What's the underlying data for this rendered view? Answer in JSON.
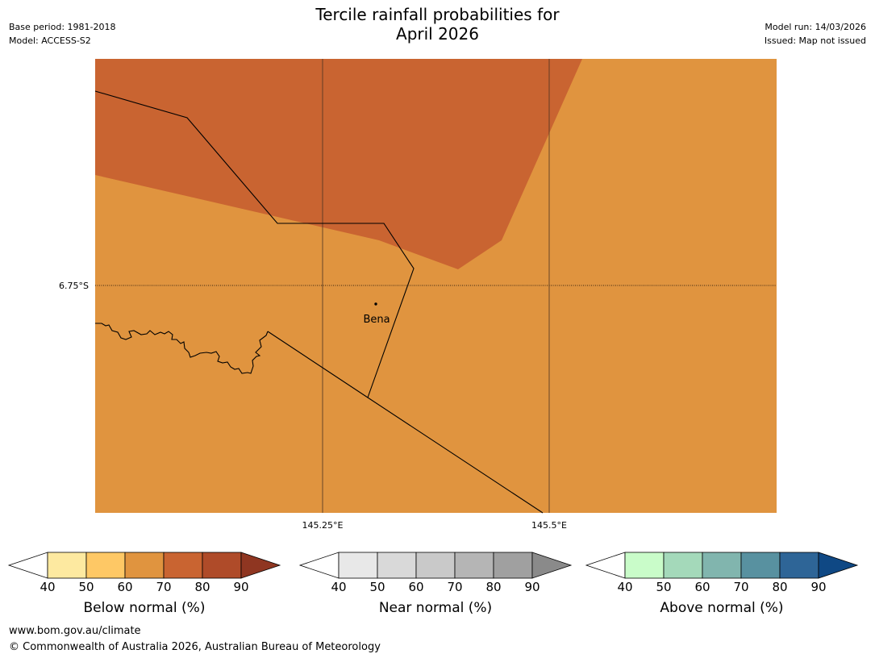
{
  "title": {
    "line1": "Tercile rainfall probabilities for",
    "line2": "April 2026"
  },
  "meta": {
    "base_period": "Base period: 1981-2018",
    "model": "Model: ACCESS-S2",
    "model_run": "Model run: 14/03/2026",
    "issued": "Issued: Map not issued"
  },
  "map": {
    "lat_label": "6.75°S",
    "lon_labels": [
      "145.25°E",
      "145.5°E"
    ],
    "place": "Bena",
    "colors": {
      "below_50_60": "#e0943f",
      "below_60_70": "#c96431"
    }
  },
  "colorbars": [
    {
      "id": "below",
      "title": "Below normal (%)",
      "ticks": [
        "40",
        "50",
        "60",
        "70",
        "80",
        "90"
      ],
      "colors": [
        "#ffffff",
        "#fde9a0",
        "#fec865",
        "#e0943f",
        "#c96431",
        "#af4b29",
        "#8f3621"
      ]
    },
    {
      "id": "near",
      "title": "Near normal (%)",
      "ticks": [
        "40",
        "50",
        "60",
        "70",
        "80",
        "90"
      ],
      "colors": [
        "#ffffff",
        "#e8e8e8",
        "#d9d9d9",
        "#c9c9c9",
        "#b5b5b5",
        "#a0a0a0",
        "#8a8a8a"
      ]
    },
    {
      "id": "above",
      "title": "Above normal (%)",
      "ticks": [
        "40",
        "50",
        "60",
        "70",
        "80",
        "90"
      ],
      "colors": [
        "#ffffff",
        "#c9fcc9",
        "#a4d9ba",
        "#81b5ae",
        "#5891a0",
        "#2e6597",
        "#0f4884"
      ]
    }
  ],
  "footer": {
    "url": "www.bom.gov.au/climate",
    "copyright": "© Commonwealth of Australia 2026, Australian Bureau of Meteorology"
  }
}
